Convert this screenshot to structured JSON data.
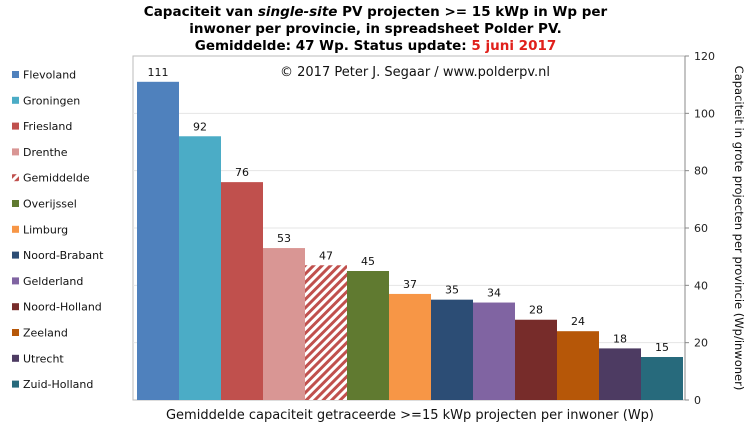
{
  "title": {
    "line1_a": "Capaciteit van ",
    "line1_b": "single-site",
    "line1_c": " PV projecten >= 15 kWp in Wp per",
    "line2": "inwoner per provincie, in spreadsheet Polder PV.",
    "line3_a": "Gemiddelde: 47 Wp. Status update: ",
    "line3_b": "5 juni 2017"
  },
  "copyright": "© 2017 Peter J. Segaar / www.polderpv.nl",
  "chart_data": {
    "type": "bar",
    "categories": [
      "Flevoland",
      "Groningen",
      "Friesland",
      "Drenthe",
      "Gemiddelde",
      "Overijssel",
      "Limburg",
      "Noord-Brabant",
      "Gelderland",
      "Noord-Holland",
      "Zeeland",
      "Utrecht",
      "Zuid-Holland"
    ],
    "values": [
      111,
      92,
      76,
      53,
      47,
      45,
      37,
      35,
      34,
      28,
      24,
      18,
      15
    ],
    "colors": [
      "#4f81bd",
      "#4bacc6",
      "#c0504d",
      "#d99694",
      "#c0504d",
      "#607a30",
      "#f79646",
      "#2c4d75",
      "#8064a2",
      "#772c2a",
      "#b65708",
      "#4d3b62",
      "#276a7c"
    ],
    "hatched": [
      false,
      false,
      false,
      false,
      true,
      false,
      false,
      false,
      false,
      false,
      false,
      false,
      false
    ],
    "label_colors": [
      "#111111",
      "#111111",
      "#111111",
      "#111111",
      "#e0201b",
      "#111111",
      "#111111",
      "#111111",
      "#111111",
      "#111111",
      "#111111",
      "#111111",
      "#111111"
    ],
    "ylim": [
      0,
      120
    ],
    "yticks": [
      0,
      20,
      40,
      60,
      80,
      100,
      120
    ],
    "ylabel": "Capaciteit in grote projecten per provincie (Wp/inwoner)",
    "xlabel": "Gemiddelde capaciteit getraceerde >=15 kWp projecten per inwoner (Wp)",
    "legend_position": "left",
    "y_axis_side": "right"
  }
}
